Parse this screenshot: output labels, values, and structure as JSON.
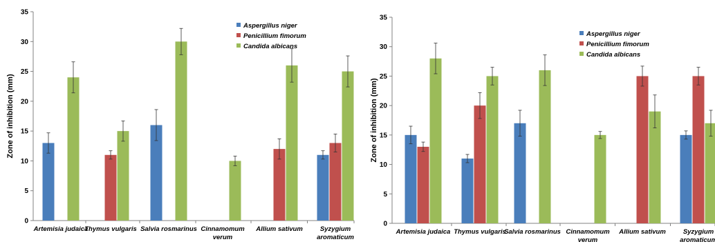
{
  "colors": {
    "Aspergillus niger": "#4a7ebb",
    "Penicillium fimorum": "#c0504d",
    "Candida albicans": "#9bbb59"
  },
  "chart_data": [
    {
      "type": "bar",
      "ylabel": "Zone of inhibition (mm)",
      "ylim": [
        0,
        35
      ],
      "yticks": [
        0,
        5,
        10,
        15,
        20,
        25,
        30,
        35
      ],
      "grid": false,
      "legend_position": "top-right",
      "categories": [
        [
          "Artemisia judaica"
        ],
        [
          "Thymus vulgaris"
        ],
        [
          "Salvia rosmarinus"
        ],
        [
          "Cinnamomum",
          "verum"
        ],
        [
          "Allium sativum"
        ],
        [
          "Syzygium",
          "aromaticum"
        ]
      ],
      "series": [
        {
          "name": "Aspergillus niger",
          "values": [
            13,
            0,
            16,
            0,
            0,
            11
          ],
          "errors": [
            1.7,
            0,
            2.6,
            0,
            0,
            0.7
          ]
        },
        {
          "name": "Penicillium fimorum",
          "values": [
            0,
            11,
            0,
            0,
            12,
            13
          ],
          "errors": [
            0,
            0.7,
            0,
            0,
            1.7,
            1.5
          ]
        },
        {
          "name": "Candida albicans",
          "values": [
            24,
            15,
            30,
            10,
            26,
            25
          ],
          "errors": [
            2.6,
            1.7,
            2.2,
            0.8,
            2.8,
            2.6
          ]
        }
      ]
    },
    {
      "type": "bar",
      "ylabel": "Zone of inhibition (mm)",
      "ylim": [
        0,
        35
      ],
      "yticks": [
        0,
        5,
        10,
        15,
        20,
        25,
        30,
        35
      ],
      "grid": false,
      "legend_position": "top-right",
      "categories": [
        [
          "Artemisia judaica"
        ],
        [
          "Thymus vulgaris"
        ],
        [
          "Salvia rosmarinus"
        ],
        [
          "Cinnamomum",
          "verum"
        ],
        [
          "Allium sativum"
        ],
        [
          "Syzygium",
          "aromaticum"
        ]
      ],
      "series": [
        {
          "name": "Aspergillus niger",
          "values": [
            15,
            11,
            17,
            0,
            0,
            15
          ],
          "errors": [
            1.5,
            0.7,
            2.2,
            0,
            0,
            0.7
          ]
        },
        {
          "name": "Penicillium fimorum",
          "values": [
            13,
            20,
            0,
            0,
            25,
            25
          ],
          "errors": [
            0.8,
            2.2,
            0,
            0,
            1.7,
            1.5
          ]
        },
        {
          "name": "Candida albicans",
          "values": [
            28,
            25,
            26,
            15,
            19,
            17
          ],
          "errors": [
            2.6,
            1.5,
            2.6,
            0.6,
            2.8,
            2.2
          ]
        }
      ]
    }
  ]
}
